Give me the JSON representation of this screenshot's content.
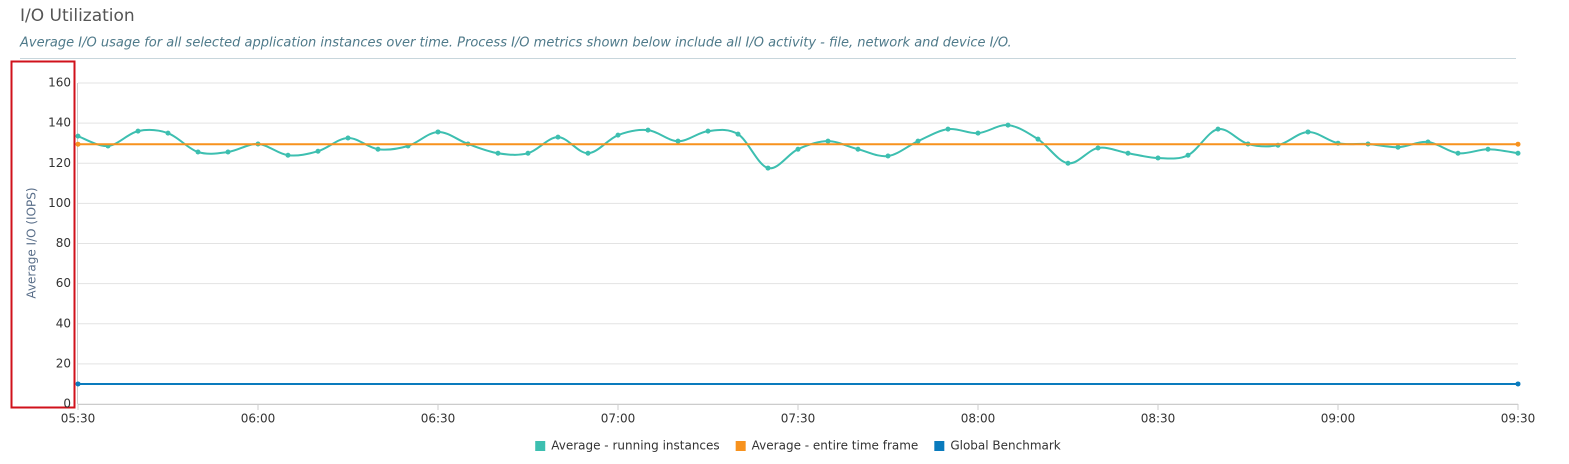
{
  "chart_data": {
    "type": "line",
    "title": "I/O Utilization",
    "subtitle": "Average I/O usage for all selected application instances over time. Process I/O metrics shown below include all I/O activity - file, network and device I/O.",
    "y_label": "Average I/O (IOPS)",
    "x": [
      "05:30",
      "05:35",
      "05:40",
      "05:45",
      "05:50",
      "05:55",
      "06:00",
      "06:05",
      "06:10",
      "06:15",
      "06:20",
      "06:25",
      "06:30",
      "06:35",
      "06:40",
      "06:45",
      "06:50",
      "06:55",
      "07:00",
      "07:05",
      "07:10",
      "07:15",
      "07:20",
      "07:25",
      "07:30",
      "07:35",
      "07:40",
      "07:45",
      "07:50",
      "07:55",
      "08:00",
      "08:05",
      "08:10",
      "08:15",
      "08:20",
      "08:25",
      "08:30",
      "08:35",
      "08:40",
      "08:45",
      "08:50",
      "08:55",
      "09:00",
      "09:05",
      "09:10",
      "09:15",
      "09:20",
      "09:25",
      "09:30"
    ],
    "xticks": [
      "05:30",
      "06:00",
      "06:30",
      "07:00",
      "07:30",
      "08:00",
      "08:30",
      "09:00",
      "09:30"
    ],
    "ylim": [
      0,
      160
    ],
    "yticks": [
      0,
      20,
      40,
      60,
      80,
      100,
      120,
      140,
      160
    ],
    "grid": true,
    "legend": "bottom",
    "series": [
      {
        "name": "Average - running instances",
        "color": "#3dbfb0",
        "smooth": true,
        "values": [
          133.5,
          128.6,
          136,
          135,
          125.6,
          125.6,
          129.6,
          124,
          126,
          132.6,
          127,
          128.6,
          135.6,
          129.6,
          125,
          125,
          133,
          125,
          134,
          136.5,
          131,
          136,
          134.5,
          117.6,
          127,
          131,
          127,
          123.6,
          131,
          137,
          135,
          139,
          132,
          120,
          127.6,
          125,
          122.6,
          124,
          137,
          129.6,
          129,
          135.6,
          130,
          129.6,
          128,
          130.6,
          125,
          127,
          125
        ]
      },
      {
        "name": "Average - entire time frame",
        "color": "#f7921e",
        "smooth": false,
        "values": [
          129.5,
          129.5,
          129.5,
          129.5,
          129.5,
          129.5,
          129.5,
          129.5,
          129.5,
          129.5,
          129.5,
          129.5,
          129.5,
          129.5,
          129.5,
          129.5,
          129.5,
          129.5,
          129.5,
          129.5,
          129.5,
          129.5,
          129.5,
          129.5,
          129.5,
          129.5,
          129.5,
          129.5,
          129.5,
          129.5,
          129.5,
          129.5,
          129.5,
          129.5,
          129.5,
          129.5,
          129.5,
          129.5,
          129.5,
          129.5,
          129.5,
          129.5,
          129.5,
          129.5,
          129.5,
          129.5,
          129.5,
          129.5,
          129.5
        ]
      },
      {
        "name": "Global Benchmark",
        "color": "#0a7bbd",
        "smooth": false,
        "values": [
          10,
          10,
          10,
          10,
          10,
          10,
          10,
          10,
          10,
          10,
          10,
          10,
          10,
          10,
          10,
          10,
          10,
          10,
          10,
          10,
          10,
          10,
          10,
          10,
          10,
          10,
          10,
          10,
          10,
          10,
          10,
          10,
          10,
          10,
          10,
          10,
          10,
          10,
          10,
          10,
          10,
          10,
          10,
          10,
          10,
          10,
          10,
          10,
          10
        ]
      }
    ]
  }
}
